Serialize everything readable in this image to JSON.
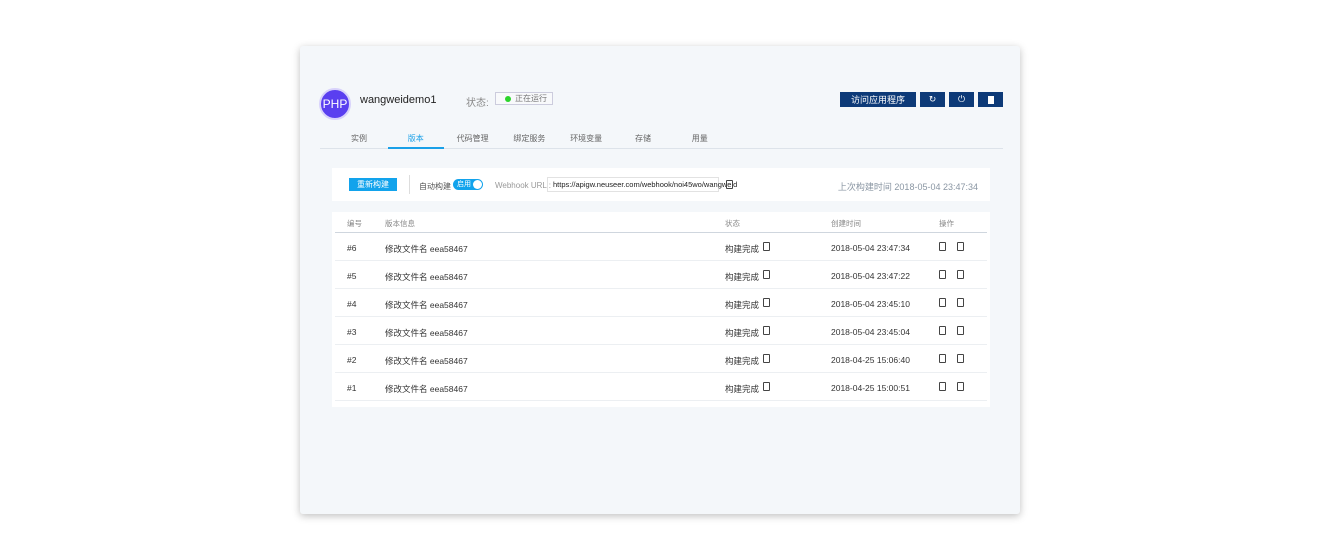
{
  "app": {
    "avatar_text": "PHP",
    "name": "wangweidemo1",
    "status_label": "状态:",
    "status": "正在运行",
    "status_color": "#2bd42b"
  },
  "actions": {
    "visit": "访问应用程序",
    "icons": [
      "refresh-icon",
      "power-icon",
      "trash-icon"
    ]
  },
  "tabs": [
    {
      "label": "实例"
    },
    {
      "label": "版本",
      "active": true
    },
    {
      "label": "代码管理"
    },
    {
      "label": "绑定服务"
    },
    {
      "label": "环境变量"
    },
    {
      "label": "存储"
    },
    {
      "label": "用量"
    }
  ],
  "toolbar": {
    "rebuild": "重新构建",
    "auto_build": "自动构建",
    "toggle": "启用",
    "webhook_label": "Webhook URL :",
    "webhook_url": "https://apigw.neuseer.com/webhook/noi45wo/wangweid",
    "last_build": "上次构建时间 2018-05-04 23:47:34"
  },
  "table": {
    "headers": [
      "编号",
      "版本信息",
      "状态",
      "创建时间",
      "操作"
    ],
    "rows": [
      {
        "id": "#6",
        "info": "修改文件名 eea58467",
        "status": "构建完成",
        "time": "2018-05-04 23:47:34"
      },
      {
        "id": "#5",
        "info": "修改文件名 eea58467",
        "status": "构建完成",
        "time": "2018-05-04 23:47:22"
      },
      {
        "id": "#4",
        "info": "修改文件名 eea58467",
        "status": "构建完成",
        "time": "2018-05-04 23:45:10"
      },
      {
        "id": "#3",
        "info": "修改文件名 eea58467",
        "status": "构建完成",
        "time": "2018-05-04 23:45:04"
      },
      {
        "id": "#2",
        "info": "修改文件名 eea58467",
        "status": "构建完成",
        "time": "2018-04-25 15:06:40"
      },
      {
        "id": "#1",
        "info": "修改文件名 eea58467",
        "status": "构建完成",
        "time": "2018-04-25 15:00:51"
      }
    ]
  },
  "colors": {
    "primary": "#0d3a78",
    "accent": "#12a3ec",
    "avatar": "#5a3ff0"
  }
}
